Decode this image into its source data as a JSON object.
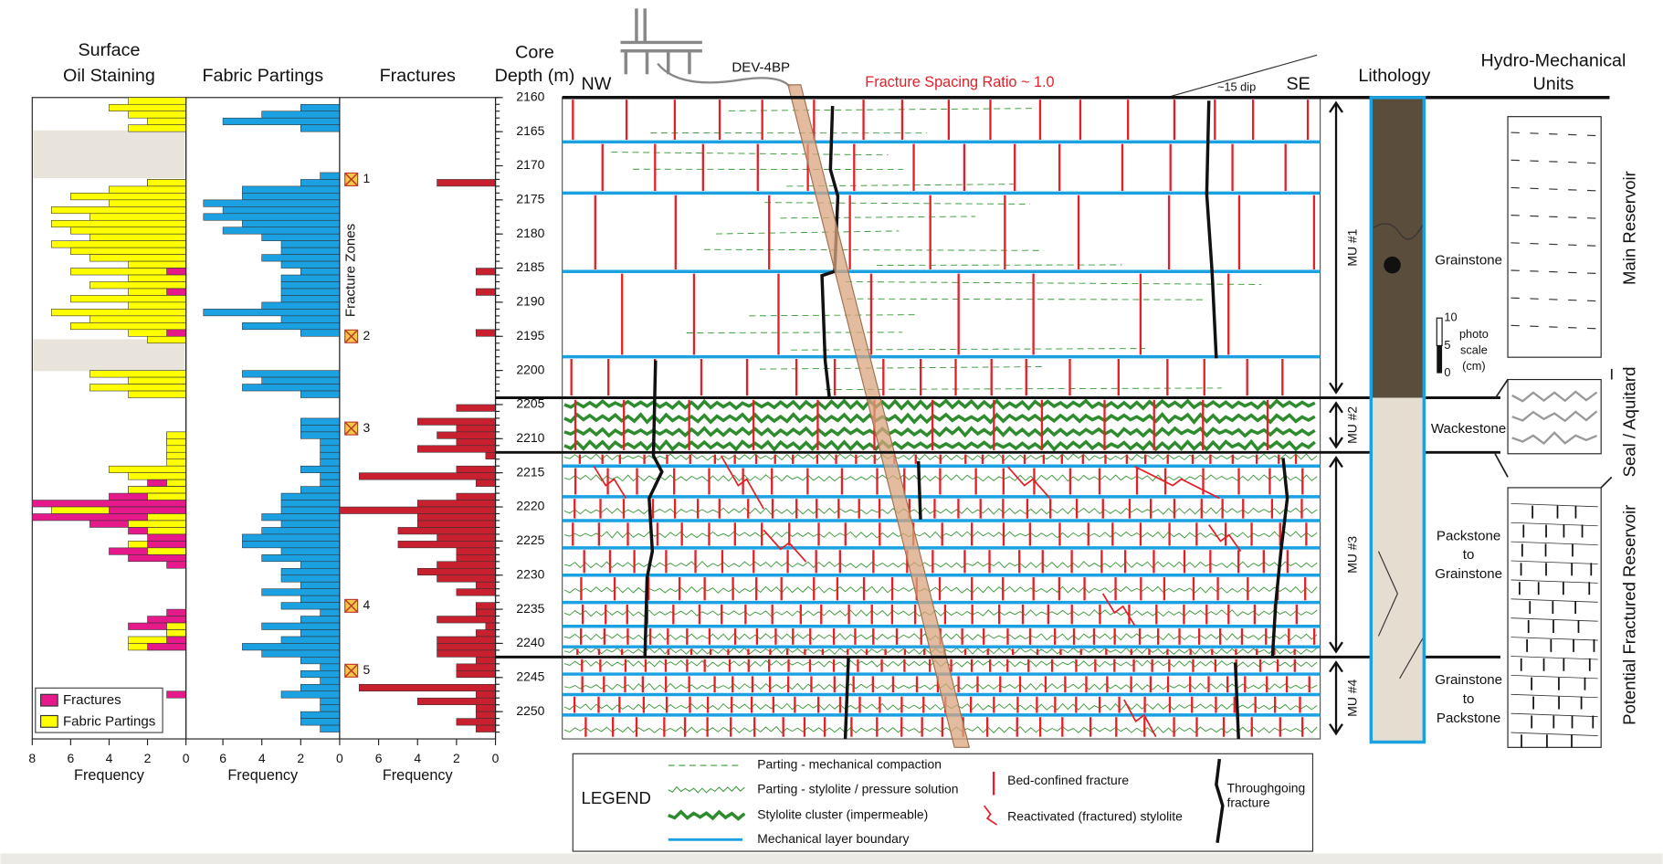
{
  "chart_data": {
    "type": "well-log",
    "depth_axis": {
      "title": [
        "Core",
        "Depth (m)"
      ],
      "ylim": [
        2160,
        2254
      ],
      "yticks": [
        2160,
        2165,
        2170,
        2175,
        2180,
        2185,
        2190,
        2195,
        2200,
        2205,
        2210,
        2215,
        2220,
        2225,
        2230,
        2235,
        2240,
        2245,
        2250
      ]
    },
    "bins": [
      2160,
      2161,
      2162,
      2163,
      2164,
      2165,
      2166,
      2167,
      2168,
      2169,
      2170,
      2171,
      2172,
      2173,
      2174,
      2175,
      2176,
      2177,
      2178,
      2179,
      2180,
      2181,
      2182,
      2183,
      2184,
      2185,
      2186,
      2187,
      2188,
      2189,
      2190,
      2191,
      2192,
      2193,
      2194,
      2195,
      2196,
      2197,
      2198,
      2199,
      2200,
      2201,
      2202,
      2203,
      2204,
      2205,
      2206,
      2207,
      2208,
      2209,
      2210,
      2211,
      2212,
      2213,
      2214,
      2215,
      2216,
      2217,
      2218,
      2219,
      2220,
      2221,
      2222,
      2223,
      2224,
      2225,
      2226,
      2227,
      2228,
      2229,
      2230,
      2231,
      2232,
      2233,
      2234,
      2235,
      2236,
      2237,
      2238,
      2239,
      2240,
      2241,
      2242,
      2243,
      2244,
      2245,
      2246,
      2247,
      2248,
      2249,
      2250,
      2251,
      2252,
      2253
    ],
    "panels": [
      {
        "title": [
          "Surface",
          "Oil Staining"
        ],
        "xlabel": "Frequency",
        "xlim": [
          8,
          0
        ],
        "xticks": [
          8,
          6,
          4,
          2,
          0
        ],
        "legend": "lower left",
        "series": [
          {
            "name": "Fractures",
            "color": "#e6198a",
            "values": [
              0,
              0,
              0,
              0,
              0,
              0,
              0,
              0,
              0,
              0,
              0,
              0,
              2,
              0,
              0,
              0,
              0,
              0,
              0,
              0,
              0,
              0,
              0,
              0,
              0,
              1,
              0,
              0,
              1,
              0,
              0,
              0,
              0,
              0,
              1,
              0,
              0,
              0,
              0,
              0,
              0,
              0,
              0,
              0,
              0,
              0,
              0,
              0,
              0,
              1,
              1,
              0,
              1,
              0,
              0,
              0,
              2,
              3,
              4,
              8,
              4,
              8,
              5,
              3,
              2,
              2,
              4,
              3,
              1,
              0,
              0,
              0,
              0,
              0,
              0,
              1,
              2,
              3,
              1,
              1,
              2,
              0,
              0,
              0,
              0,
              0,
              0,
              1,
              0,
              0,
              0,
              0,
              0
            ]
          },
          {
            "name": "Fabric Partings",
            "color": "#ffff00",
            "values": [
              3,
              4,
              3,
              2,
              3,
              0,
              0,
              0,
              0,
              0,
              0,
              0,
              2,
              4,
              6,
              4,
              7,
              5,
              7,
              6,
              5,
              7,
              6,
              5,
              3,
              6,
              3,
              5,
              3,
              6,
              3,
              7,
              5,
              6,
              3,
              2,
              0,
              0,
              0,
              0,
              5,
              3,
              5,
              3,
              0,
              0,
              0,
              0,
              0,
              1,
              1,
              1,
              1,
              1,
              4,
              3,
              1,
              3,
              2,
              0,
              7,
              2,
              3,
              2,
              0,
              3,
              2,
              0,
              0,
              0,
              0,
              0,
              0,
              0,
              0,
              0,
              0,
              1,
              1,
              3,
              3,
              0,
              0,
              0,
              0,
              0,
              0,
              0,
              0,
              0,
              0,
              0,
              0
            ]
          }
        ]
      },
      {
        "title": [
          "Fabric Partings"
        ],
        "xlabel": "Frequency",
        "xlim": [
          7.9,
          0
        ],
        "xticks": [
          6,
          4,
          2,
          0
        ],
        "series": [
          {
            "color": "#1ba1e2",
            "values": [
              0,
              2,
              4,
              6,
              2,
              0,
              0,
              0,
              0,
              0,
              0,
              1,
              2,
              5,
              5,
              7,
              6,
              7,
              5,
              6,
              4,
              3,
              3,
              4,
              3,
              2,
              3,
              3,
              3,
              3,
              4,
              7,
              3,
              5,
              2,
              0,
              0,
              0,
              0,
              0,
              5,
              4,
              5,
              2,
              0,
              0,
              0,
              2,
              2,
              2,
              1,
              1,
              1,
              1,
              2,
              1,
              1,
              2,
              3,
              3,
              3,
              4,
              3,
              4,
              5,
              5,
              3,
              4,
              2,
              3,
              3,
              2,
              4,
              2,
              3,
              1,
              2,
              4,
              2,
              3,
              5,
              4,
              2,
              1,
              2,
              1,
              2,
              3,
              1,
              1,
              2,
              2,
              1
            ]
          }
        ]
      },
      {
        "title": [
          "Fractures"
        ],
        "xlabel": "Frequency",
        "xlim": [
          8,
          0
        ],
        "xticks": [
          6,
          4,
          2,
          0
        ],
        "series": [
          {
            "color": "#c8202f",
            "values": [
              0,
              0,
              0,
              0,
              0,
              0,
              0,
              0,
              0,
              0,
              0,
              0,
              3,
              0,
              0,
              0,
              0,
              0,
              0,
              0,
              0,
              0,
              0,
              0,
              0,
              1,
              0,
              0,
              1,
              0,
              0,
              0,
              0,
              0,
              1,
              0,
              0,
              0,
              0,
              0,
              0,
              0,
              0,
              0,
              0,
              2,
              0,
              4,
              2,
              3,
              2,
              4,
              0.5,
              0,
              2,
              7,
              1,
              0,
              2,
              4,
              8,
              4,
              4,
              5,
              3,
              5,
              2,
              2,
              3,
              4,
              3,
              1,
              2,
              0,
              1,
              1,
              3,
              0.5,
              1,
              3,
              3,
              3,
              1,
              2,
              2,
              0,
              7,
              1,
              4,
              1,
              1,
              2,
              1
            ]
          }
        ],
        "fracture_zones": {
          "title": "Fracture Zones",
          "zones": [
            {
              "label": "1",
              "depth": 2172
            },
            {
              "label": "2",
              "depth": 2195
            },
            {
              "label": "3",
              "depth": 2208.5
            },
            {
              "label": "4",
              "depth": 2234.5
            },
            {
              "label": "5",
              "depth": 2244
            }
          ]
        }
      }
    ]
  },
  "cross_section": {
    "labels": {
      "nw": "NW",
      "se": "SE",
      "well": "DEV-4BP",
      "ratio": "Fracture Spacing Ratio ~ 1.0",
      "dip": "~15 dip"
    },
    "layer_boundaries": [
      2166.5,
      2174,
      2185.5,
      2198,
      2214,
      2218.5,
      2222,
      2226,
      2230,
      2234,
      2237.5,
      2240.5,
      2244.5,
      2247.5,
      2250.5
    ],
    "mechanical_units": [
      {
        "label": "MU #1",
        "top": 2160,
        "base": 2204
      },
      {
        "label": "MU #2",
        "top": 2204,
        "base": 2212
      },
      {
        "label": "MU #3",
        "top": 2212,
        "base": 2242
      },
      {
        "label": "MU #4",
        "top": 2242,
        "base": 2254
      }
    ],
    "lithology": {
      "title": "Lithology",
      "units": [
        [
          "Grainstone"
        ],
        [
          "Wackestone"
        ],
        [
          "Packstone",
          "to",
          "Grainstone"
        ],
        [
          "Grainstone",
          "to",
          "Packstone"
        ]
      ],
      "photo_scale": {
        "ticks": [
          10,
          5,
          0
        ],
        "label": [
          "photo",
          "scale",
          "(cm)"
        ]
      }
    },
    "hydro": {
      "title": [
        "Hydro-Mechanical",
        "Units"
      ],
      "units": [
        "Main Reservoir",
        "Seal / Aquitard",
        "Potential Fractured Reservoir"
      ]
    },
    "legend": {
      "title": "LEGEND",
      "items": [
        [
          "Parting - mechanical compaction"
        ],
        [
          "Parting - stylolite / pressure solution"
        ],
        [
          "Stylolite cluster (impermeable)"
        ],
        [
          "Mechanical layer boundary"
        ],
        [
          "Bed-confined fracture"
        ],
        [
          "Reactivated (fractured) stylolite"
        ],
        [
          "Throughgoing",
          "fracture"
        ]
      ]
    }
  }
}
